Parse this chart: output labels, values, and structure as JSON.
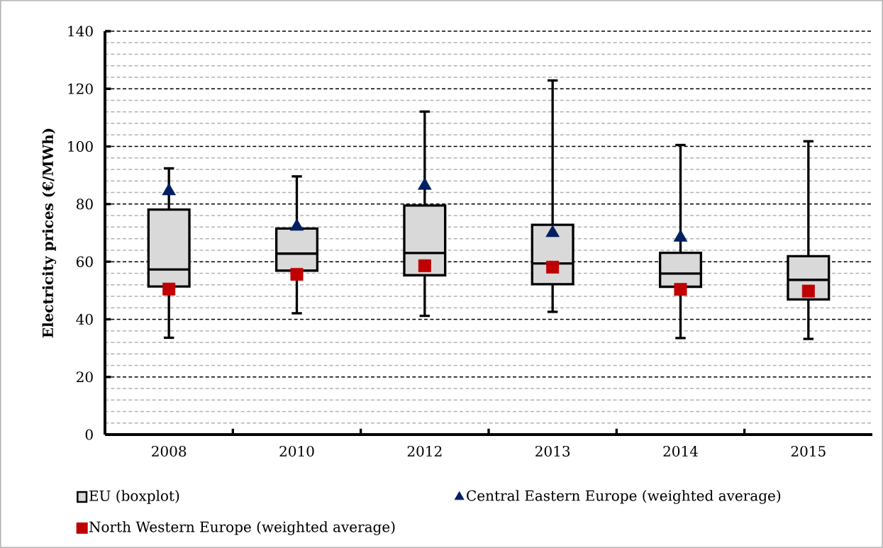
{
  "chart_data": {
    "type": "box",
    "ylabel": "Electricity prices (€/MWh)",
    "categories": [
      "2008",
      "2010",
      "2012",
      "2013",
      "2014",
      "2015"
    ],
    "ylim": [
      0,
      140
    ],
    "yticks": [
      0,
      20,
      40,
      60,
      80,
      100,
      120,
      140
    ],
    "grid": true,
    "legend": "bottom",
    "series": [
      {
        "name": "EU (boxplot)",
        "color": "#d9d9d9",
        "boxes": [
          {
            "low": 33.6,
            "q1": 51.4,
            "median": 57.3,
            "q3": 78.1,
            "high": 92.4
          },
          {
            "low": 42.1,
            "q1": 56.9,
            "median": 62.8,
            "q3": 71.5,
            "high": 89.6
          },
          {
            "low": 41.2,
            "q1": 55.3,
            "median": 63.0,
            "q3": 79.5,
            "high": 112.1
          },
          {
            "low": 42.6,
            "q1": 52.2,
            "median": 59.4,
            "q3": 72.8,
            "high": 122.9
          },
          {
            "low": 33.5,
            "q1": 51.3,
            "median": 55.9,
            "q3": 63.1,
            "high": 100.5
          },
          {
            "low": 33.2,
            "q1": 46.9,
            "median": 53.7,
            "q3": 61.9,
            "high": 101.8
          }
        ]
      },
      {
        "name": "Central Eastern Europe (weighted average)",
        "type": "scatter",
        "marker": "triangle",
        "color": "#002060",
        "values": [
          84.5,
          72.2,
          86.4,
          70.0,
          68.4,
          null
        ]
      },
      {
        "name": "North Western Europe (weighted average)",
        "type": "scatter",
        "marker": "square",
        "color": "#c00000",
        "values": [
          50.5,
          55.6,
          58.6,
          58.1,
          50.4,
          49.8
        ]
      }
    ]
  }
}
